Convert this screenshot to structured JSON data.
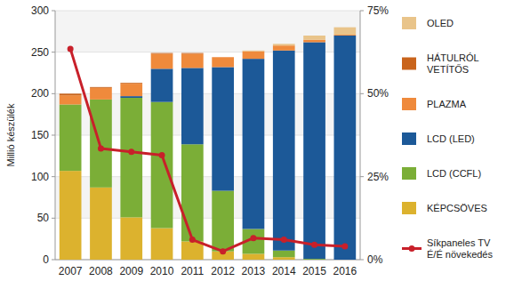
{
  "chart_data": {
    "type": "bar",
    "stacked": true,
    "grid": true,
    "legend": "right",
    "y_label": "Millió készülék",
    "categories": [
      "2007",
      "2008",
      "2009",
      "2010",
      "2011",
      "2012",
      "2013",
      "2014",
      "2015",
      "2016"
    ],
    "ylim": [
      0,
      300
    ],
    "yticks": [
      0,
      50,
      100,
      150,
      200,
      250,
      300
    ],
    "y2lim": [
      0,
      75
    ],
    "y2ticks": [
      {
        "value": 0,
        "label": "0%"
      },
      {
        "value": 25,
        "label": "25%"
      },
      {
        "value": 50,
        "label": "50%"
      },
      {
        "value": 75,
        "label": "75%"
      }
    ],
    "series": [
      {
        "name": "KÉPCSÖVES",
        "type": "bar",
        "color": "#dcb22e",
        "values": [
          107,
          87,
          51,
          38,
          22,
          10,
          7,
          3,
          0,
          0
        ]
      },
      {
        "name": "LCD (CCFL)",
        "type": "bar",
        "color": "#7bae37",
        "values": [
          80,
          106,
          144,
          152,
          117,
          73,
          30,
          8,
          1,
          0
        ]
      },
      {
        "name": "LCD (LED)",
        "type": "bar",
        "color": "#1c5998",
        "values": [
          0,
          0,
          2,
          40,
          92,
          149,
          205,
          241,
          261,
          270
        ]
      },
      {
        "name": "PLAZMA",
        "type": "bar",
        "color": "#ef8a3c",
        "values": [
          11,
          14,
          15,
          18,
          17,
          12,
          9,
          6,
          3,
          1
        ]
      },
      {
        "name": "HÁTULRÓL VETÍTŐS",
        "type": "bar",
        "color": "#c9641c",
        "values": [
          2,
          1,
          1,
          1,
          1,
          0,
          0,
          0,
          0,
          0
        ]
      },
      {
        "name": "OLED",
        "type": "bar",
        "color": "#e9c48a",
        "values": [
          0,
          0,
          0,
          0,
          0,
          0,
          1,
          2,
          5,
          9
        ]
      },
      {
        "name": "Síkpaneles TV É/É növekedés",
        "type": "line",
        "axis": "y2",
        "color": "#c8202a",
        "marker": "circle",
        "line_style": "solid",
        "values": [
          63.5,
          33.5,
          32.5,
          31.5,
          6,
          2.5,
          6.5,
          6,
          4.5,
          4
        ]
      }
    ]
  }
}
